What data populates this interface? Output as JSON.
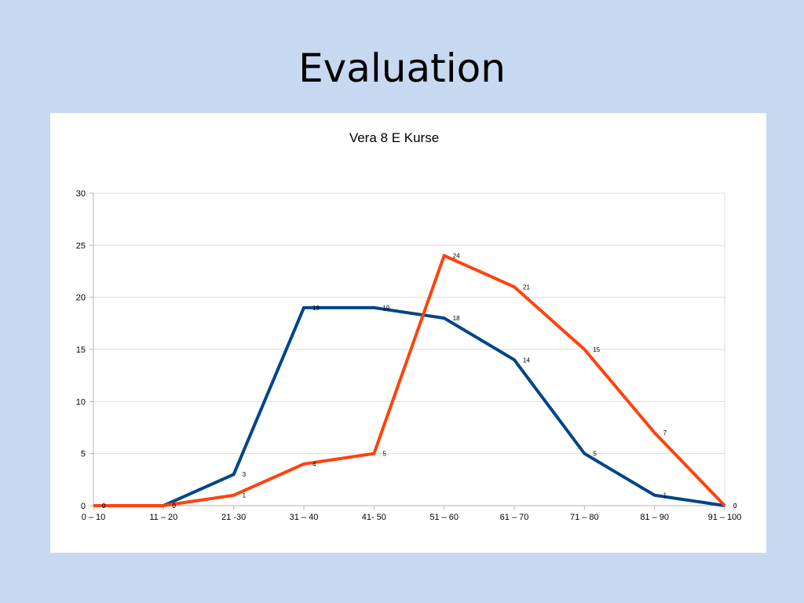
{
  "slide": {
    "title": "Evaluation"
  },
  "chart_data": {
    "type": "line",
    "title": "Vera 8 E Kurse",
    "xlabel": "",
    "ylabel": "",
    "categories": [
      "0 – 10",
      "11 – 20",
      "21 -30",
      "31 – 40",
      "41- 50",
      "51 – 60",
      "61 – 70",
      "71 – 80",
      "81 – 90",
      "91 – 100"
    ],
    "ylim": [
      0,
      30
    ],
    "yticks": [
      0,
      5,
      10,
      15,
      20,
      25,
      30
    ],
    "grid": true,
    "legend": "none",
    "series": [
      {
        "color": "#004586",
        "values": [
          0,
          0,
          3,
          19,
          19,
          18,
          14,
          5,
          1,
          0
        ]
      },
      {
        "color": "#ff420e",
        "values": [
          0,
          0,
          1,
          4,
          5,
          24,
          21,
          15,
          7,
          0
        ]
      }
    ]
  }
}
